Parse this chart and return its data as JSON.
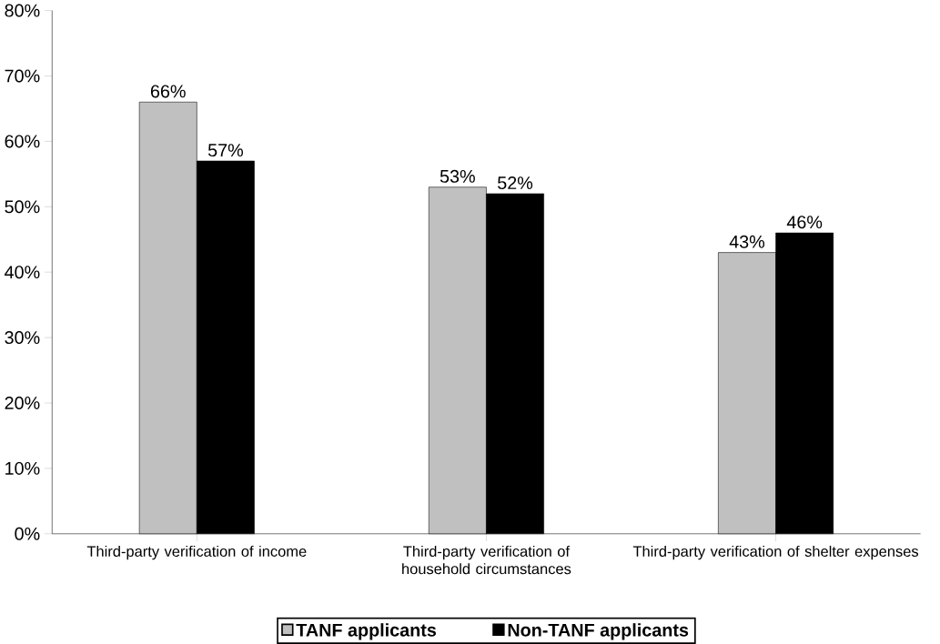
{
  "chart_data": {
    "type": "bar",
    "categories": [
      "Third-party verification of income",
      "Third-party verification of household circumstances",
      "Third-party verification of shelter expenses"
    ],
    "series": [
      {
        "name": "TANF applicants",
        "color": "#c0c0c0",
        "values": [
          66,
          53,
          43
        ],
        "value_labels": [
          "66%",
          "53%",
          "43%"
        ]
      },
      {
        "name": "Non-TANF applicants",
        "color": "#000000",
        "values": [
          57,
          52,
          46
        ],
        "value_labels": [
          "57%",
          "52%",
          "46%"
        ]
      }
    ],
    "ylim": [
      0,
      80
    ],
    "yticks": [
      {
        "value": 0,
        "label": "0%"
      },
      {
        "value": 10,
        "label": "10%"
      },
      {
        "value": 20,
        "label": "20%"
      },
      {
        "value": 30,
        "label": "30%"
      },
      {
        "value": 40,
        "label": "40%"
      },
      {
        "value": 50,
        "label": "50%"
      },
      {
        "value": 60,
        "label": "60%"
      },
      {
        "value": 70,
        "label": "70%"
      },
      {
        "value": 80,
        "label": "80%"
      }
    ],
    "grid": false,
    "legend": "bottom"
  }
}
